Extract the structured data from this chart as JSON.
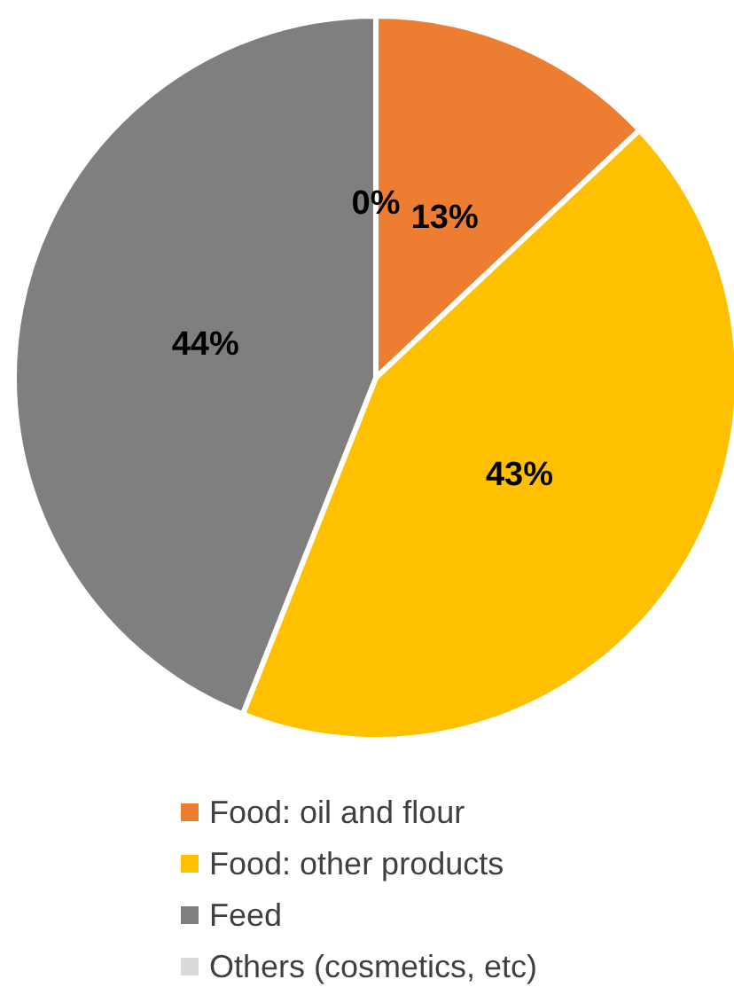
{
  "chart_data": {
    "type": "pie",
    "categories": [
      "Food: oil and flour",
      "Food: other products",
      "Feed",
      "Others (cosmetics, etc)"
    ],
    "values": [
      13,
      43,
      44,
      0
    ],
    "colors": [
      "#ed7d31",
      "#ffc000",
      "#7f7f7f",
      "#d9d9d9"
    ],
    "value_labels": [
      "13%",
      "43%",
      "44%",
      "0%"
    ],
    "legend": "bottom"
  }
}
